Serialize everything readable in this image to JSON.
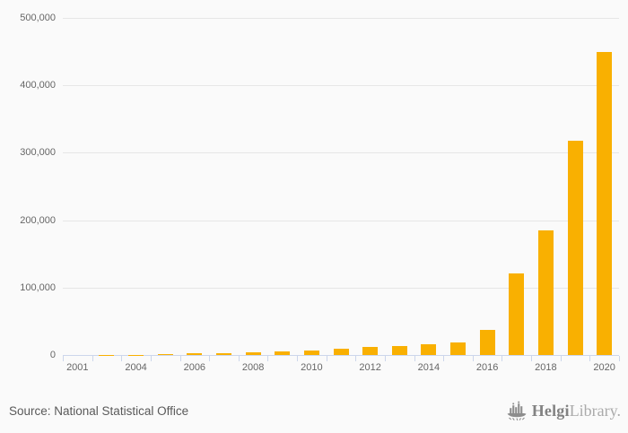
{
  "chart_data": {
    "type": "bar",
    "title": "",
    "xlabel": "",
    "ylabel": "",
    "legend": "none",
    "grid": "horizontal",
    "bar_color": "#f9b001",
    "axis_line_color": "#ccd6eb",
    "gridline_color": "#e6e6e6",
    "label_color": "#666666",
    "categories": [
      "2001",
      "2003",
      "2004",
      "2005",
      "2006",
      "2007",
      "2008",
      "2009",
      "2010",
      "2011",
      "2012",
      "2013",
      "2014",
      "2015",
      "2016",
      "2017",
      "2018",
      "2019",
      "2020"
    ],
    "values": [
      0,
      200,
      400,
      800,
      2500,
      3000,
      4600,
      5000,
      6600,
      8800,
      11500,
      13000,
      16000,
      18500,
      37500,
      121000,
      185000,
      318000,
      450000
    ],
    "x_label_indices": [
      0,
      2,
      4,
      6,
      8,
      10,
      12,
      14,
      16,
      18
    ],
    "x_labels_visible": [
      "2001",
      "2004",
      "2006",
      "2008",
      "2010",
      "2012",
      "2014",
      "2016",
      "2018",
      "2020"
    ],
    "ylim": [
      0,
      500000
    ],
    "y_ticks": [
      0,
      100000,
      200000,
      300000,
      400000,
      500000
    ],
    "y_tick_labels": [
      "0",
      "100,000",
      "200,000",
      "300,000",
      "400,000",
      "500,000"
    ]
  },
  "footer": {
    "source_label": "Source: National Statistical Office",
    "brand_bold": "Helgi",
    "brand_light": "Library."
  }
}
